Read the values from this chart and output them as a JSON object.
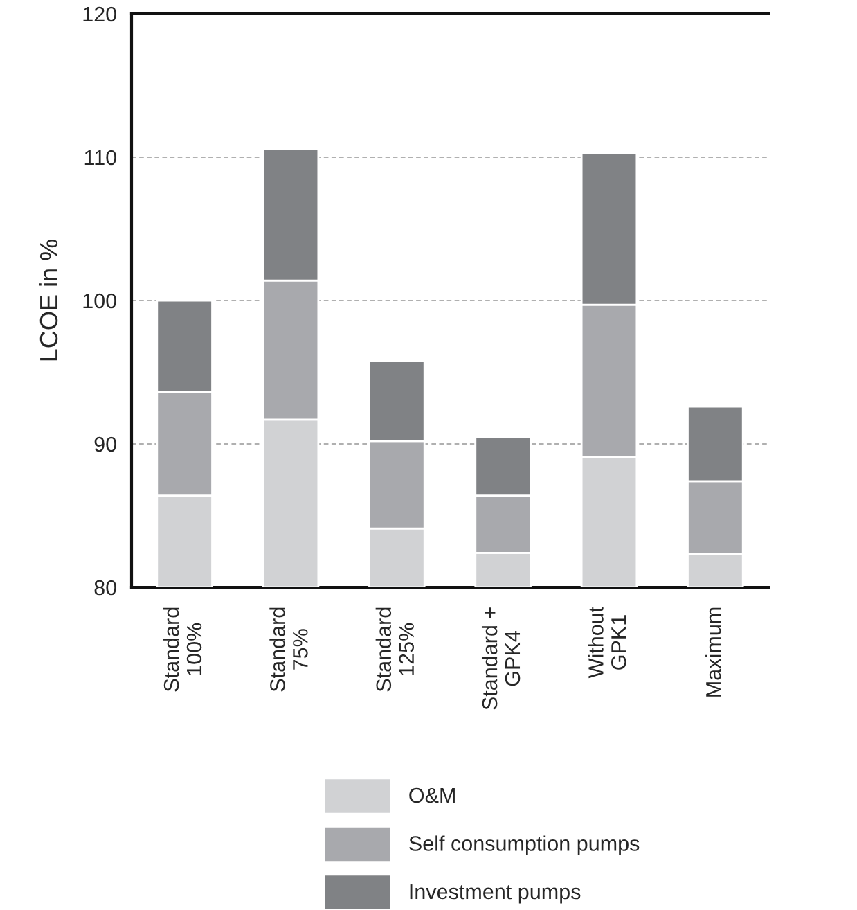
{
  "chart_data": {
    "type": "bar",
    "ylabel": "LCOE in %",
    "categories": [
      "Standard\n100%",
      "Standard\n75%",
      "Standard\n125%",
      "Standard +\nGPK4",
      "Without\nGPK1",
      "Maximum"
    ],
    "series": [
      {
        "name": "O&M",
        "color": "#d1d2d4",
        "base": [
          80,
          80,
          80,
          80,
          80,
          80
        ],
        "values": [
          6.4,
          11.7,
          4.1,
          2.4,
          9.1,
          2.3
        ]
      },
      {
        "name": "Self consumption pumps",
        "color": "#a8a9ad",
        "base": [
          86.4,
          91.7,
          84.1,
          82.4,
          89.1,
          82.3
        ],
        "values": [
          7.2,
          9.7,
          6.1,
          4.0,
          10.6,
          5.1
        ]
      },
      {
        "name": "Investment pumps",
        "color": "#808285",
        "base": [
          93.6,
          101.4,
          90.2,
          86.4,
          99.7,
          87.4
        ],
        "values": [
          6.4,
          9.2,
          5.6,
          4.1,
          10.6,
          5.2
        ]
      }
    ],
    "ylim": [
      80,
      120
    ],
    "yticks": [
      80,
      90,
      100,
      110,
      120
    ],
    "grid": "y",
    "legend": "bottom"
  }
}
